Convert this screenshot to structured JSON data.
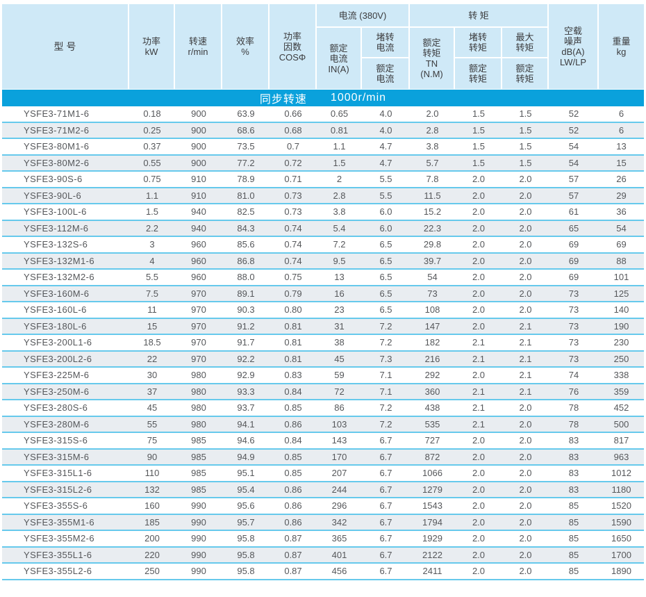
{
  "table": {
    "column_headers": {
      "model": "型  号",
      "power": "功率\nkW",
      "speed": "转速\nr/min",
      "efficiency": "效率\n%",
      "power_factor": "功率\n因数\nCOSΦ",
      "current_group": "电流 (380V)",
      "rated_current": "额定\n电流\nIN(A)",
      "locked_current_numerator": "堵转\n电流",
      "locked_current_denominator": "额定\n电流",
      "torque_group": "转  矩",
      "rated_torque": "额定\n转矩\nTN\n(N.M)",
      "locked_torque_numerator": "堵转\n转矩",
      "locked_torque_denominator": "额定\n转矩",
      "max_torque_numerator": "最大\n转矩",
      "max_torque_denominator": "额定\n转矩",
      "noise": "空载\n噪声\ndB(A)\nLW/LP",
      "weight": "重量\nkg"
    },
    "banner": {
      "label": "同步转速",
      "value": "1000r/min"
    },
    "rows": [
      [
        "YSFE3-71M1-6",
        "0.18",
        "900",
        "63.9",
        "0.66",
        "0.65",
        "4.0",
        "2.0",
        "1.5",
        "1.5",
        "52",
        "6"
      ],
      [
        "YSFE3-71M2-6",
        "0.25",
        "900",
        "68.6",
        "0.68",
        "0.81",
        "4.0",
        "2.8",
        "1.5",
        "1.5",
        "52",
        "6"
      ],
      [
        "YSFE3-80M1-6",
        "0.37",
        "900",
        "73.5",
        "0.7",
        "1.1",
        "4.7",
        "3.8",
        "1.5",
        "1.5",
        "54",
        "13"
      ],
      [
        "YSFE3-80M2-6",
        "0.55",
        "900",
        "77.2",
        "0.72",
        "1.5",
        "4.7",
        "5.7",
        "1.5",
        "1.5",
        "54",
        "15"
      ],
      [
        "YSFE3-90S-6",
        "0.75",
        "910",
        "78.9",
        "0.71",
        "2",
        "5.5",
        "7.8",
        "2.0",
        "2.0",
        "57",
        "26"
      ],
      [
        "YSFE3-90L-6",
        "1.1",
        "910",
        "81.0",
        "0.73",
        "2.8",
        "5.5",
        "11.5",
        "2.0",
        "2.0",
        "57",
        "29"
      ],
      [
        "YSFE3-100L-6",
        "1.5",
        "940",
        "82.5",
        "0.73",
        "3.8",
        "6.0",
        "15.2",
        "2.0",
        "2.0",
        "61",
        "36"
      ],
      [
        "YSFE3-112M-6",
        "2.2",
        "940",
        "84.3",
        "0.74",
        "5.4",
        "6.0",
        "22.3",
        "2.0",
        "2.0",
        "65",
        "54"
      ],
      [
        "YSFE3-132S-6",
        "3",
        "960",
        "85.6",
        "0.74",
        "7.2",
        "6.5",
        "29.8",
        "2.0",
        "2.0",
        "69",
        "69"
      ],
      [
        "YSFE3-132M1-6",
        "4",
        "960",
        "86.8",
        "0.74",
        "9.5",
        "6.5",
        "39.7",
        "2.0",
        "2.0",
        "69",
        "88"
      ],
      [
        "YSFE3-132M2-6",
        "5.5",
        "960",
        "88.0",
        "0.75",
        "13",
        "6.5",
        "54",
        "2.0",
        "2.0",
        "69",
        "101"
      ],
      [
        "YSFE3-160M-6",
        "7.5",
        "970",
        "89.1",
        "0.79",
        "16",
        "6.5",
        "73",
        "2.0",
        "2.0",
        "73",
        "125"
      ],
      [
        "YSFE3-160L-6",
        "11",
        "970",
        "90.3",
        "0.80",
        "23",
        "6.5",
        "108",
        "2.0",
        "2.0",
        "73",
        "140"
      ],
      [
        "YSFE3-180L-6",
        "15",
        "970",
        "91.2",
        "0.81",
        "31",
        "7.2",
        "147",
        "2.0",
        "2.1",
        "73",
        "190"
      ],
      [
        "YSFE3-200L1-6",
        "18.5",
        "970",
        "91.7",
        "0.81",
        "38",
        "7.2",
        "182",
        "2.1",
        "2.1",
        "73",
        "230"
      ],
      [
        "YSFE3-200L2-6",
        "22",
        "970",
        "92.2",
        "0.81",
        "45",
        "7.3",
        "216",
        "2.1",
        "2.1",
        "73",
        "250"
      ],
      [
        "YSFE3-225M-6",
        "30",
        "980",
        "92.9",
        "0.83",
        "59",
        "7.1",
        "292",
        "2.0",
        "2.1",
        "74",
        "338"
      ],
      [
        "YSFE3-250M-6",
        "37",
        "980",
        "93.3",
        "0.84",
        "72",
        "7.1",
        "360",
        "2.1",
        "2.1",
        "76",
        "359"
      ],
      [
        "YSFE3-280S-6",
        "45",
        "980",
        "93.7",
        "0.85",
        "86",
        "7.2",
        "438",
        "2.1",
        "2.0",
        "78",
        "452"
      ],
      [
        "YSFE3-280M-6",
        "55",
        "980",
        "94.1",
        "0.86",
        "103",
        "7.2",
        "535",
        "2.1",
        "2.0",
        "78",
        "500"
      ],
      [
        "YSFE3-315S-6",
        "75",
        "985",
        "94.6",
        "0.84",
        "143",
        "6.7",
        "727",
        "2.0",
        "2.0",
        "83",
        "817"
      ],
      [
        "YSFE3-315M-6",
        "90",
        "985",
        "94.9",
        "0.85",
        "170",
        "6.7",
        "872",
        "2.0",
        "2.0",
        "83",
        "963"
      ],
      [
        "YSFE3-315L1-6",
        "110",
        "985",
        "95.1",
        "0.85",
        "207",
        "6.7",
        "1066",
        "2.0",
        "2.0",
        "83",
        "1012"
      ],
      [
        "YSFE3-315L2-6",
        "132",
        "985",
        "95.4",
        "0.86",
        "244",
        "6.7",
        "1279",
        "2.0",
        "2.0",
        "83",
        "1180"
      ],
      [
        "YSFE3-355S-6",
        "160",
        "990",
        "95.6",
        "0.86",
        "296",
        "6.7",
        "1543",
        "2.0",
        "2.0",
        "85",
        "1520"
      ],
      [
        "YSFE3-355M1-6",
        "185",
        "990",
        "95.7",
        "0.86",
        "342",
        "6.7",
        "1794",
        "2.0",
        "2.0",
        "85",
        "1590"
      ],
      [
        "YSFE3-355M2-6",
        "200",
        "990",
        "95.8",
        "0.87",
        "365",
        "6.7",
        "1929",
        "2.0",
        "2.0",
        "85",
        "1650"
      ],
      [
        "YSFE3-355L1-6",
        "220",
        "990",
        "95.8",
        "0.87",
        "401",
        "6.7",
        "2122",
        "2.0",
        "2.0",
        "85",
        "1700"
      ],
      [
        "YSFE3-355L2-6",
        "250",
        "990",
        "95.8",
        "0.87",
        "456",
        "6.7",
        "2411",
        "2.0",
        "2.0",
        "85",
        "1890"
      ]
    ]
  },
  "colors": {
    "banner": "#0aa1dc",
    "header_bg": "#cfe9f7",
    "alt_row_bg": "#e9edf1",
    "row_line": "#66c9ec",
    "text": "#55575a",
    "header_text": "#3b3b3d"
  }
}
